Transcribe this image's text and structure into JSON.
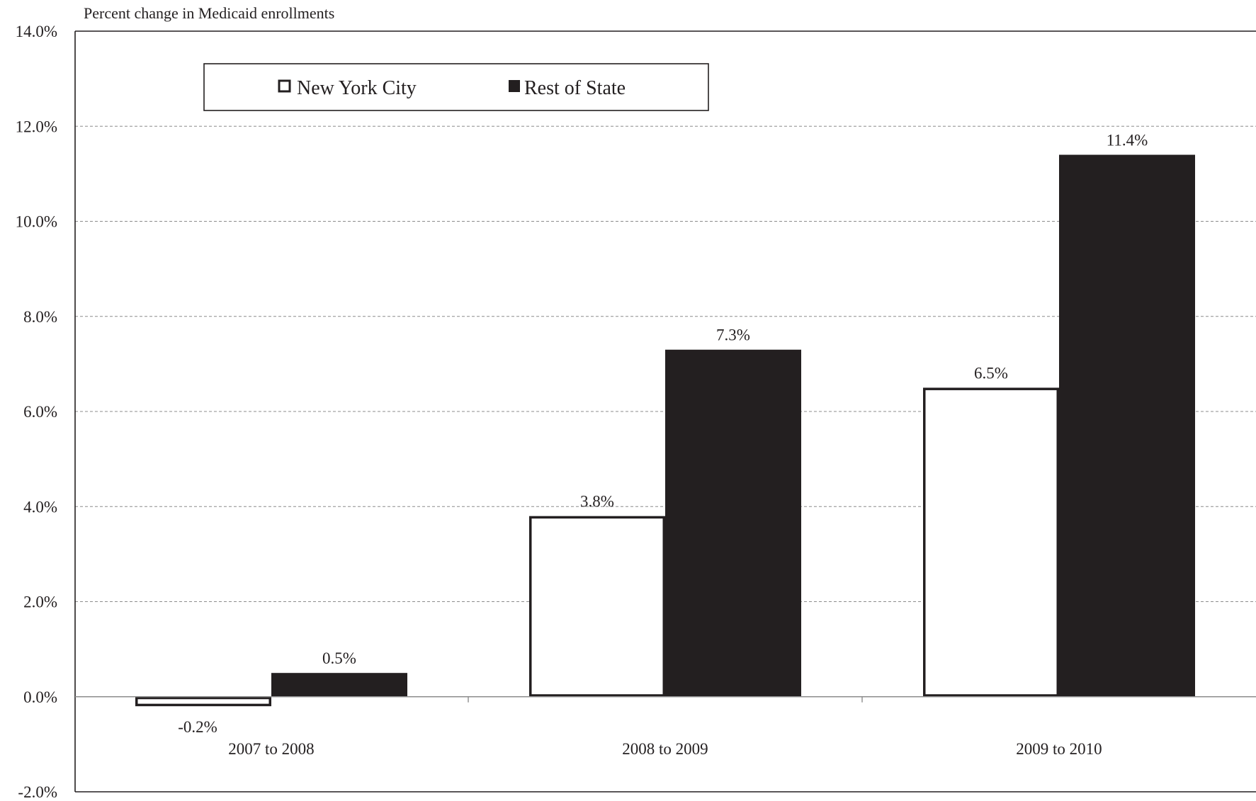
{
  "chart_data": {
    "type": "bar",
    "ylabel": "Percent change in Medicaid enrollments",
    "categories": [
      "2007 to 2008",
      "2008 to 2009",
      "2009 to 2010"
    ],
    "series": [
      {
        "name": "New York City",
        "values": [
          -0.2,
          3.8,
          6.5
        ],
        "labels": [
          "-0.2%",
          "3.8%",
          "6.5%"
        ],
        "fill": "#ffffff",
        "stroke": "#231f20"
      },
      {
        "name": "Rest of State",
        "values": [
          0.5,
          7.3,
          11.4
        ],
        "labels": [
          "0.5%",
          "7.3%",
          "11.4%"
        ],
        "fill": "#231f20",
        "stroke": "#231f20"
      }
    ],
    "ylim": [
      -2,
      14
    ],
    "yticks": [
      -2,
      0,
      2,
      4,
      6,
      8,
      10,
      12,
      14
    ],
    "ytick_labels": [
      "-2.0%",
      "0.0%",
      "2.0%",
      "4.0%",
      "6.0%",
      "8.0%",
      "10.0%",
      "12.0%",
      "14.0%"
    ],
    "grid": true,
    "legend_position": "top-left"
  }
}
